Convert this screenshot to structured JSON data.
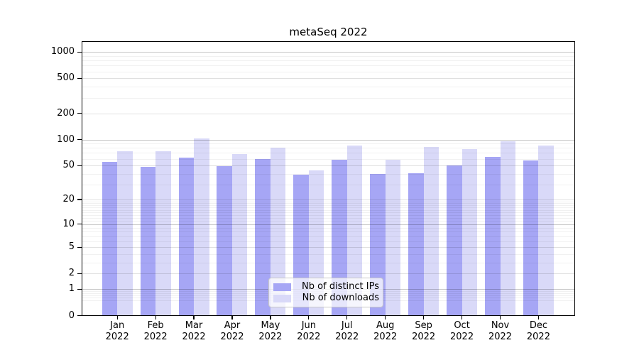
{
  "chart_data": {
    "type": "bar",
    "title": "metaSeq 2022",
    "categories": [
      "Jan",
      "Feb",
      "Mar",
      "Apr",
      "May",
      "Jun",
      "Jul",
      "Aug",
      "Sep",
      "Oct",
      "Nov",
      "Dec"
    ],
    "x_year_label": "2022",
    "series": [
      {
        "name": "Nb of distinct IPs",
        "color": "#a6a6f5",
        "values": [
          55,
          48,
          62,
          49,
          60,
          39,
          59,
          40,
          41,
          50,
          63,
          57
        ]
      },
      {
        "name": "Nb of downloads",
        "color": "#d9d9f8",
        "values": [
          74,
          73,
          102,
          68,
          80,
          44,
          85,
          58,
          82,
          78,
          95,
          86
        ]
      }
    ],
    "yscale": "symlog-log1p",
    "y_ticks": [
      1000,
      500,
      200,
      100,
      50,
      20,
      10,
      5,
      2,
      1,
      0
    ],
    "ylim": [
      0,
      1330
    ],
    "grid": "horizontal",
    "gridlines": {
      "decade_values": [
        1,
        10,
        100,
        1000
      ],
      "mid_values": [
        2,
        5,
        20,
        50,
        200,
        500
      ],
      "minor_values": [
        0.5,
        0.6,
        0.7,
        0.8,
        0.9,
        3,
        4,
        6,
        7,
        8,
        9,
        11,
        12,
        13,
        14,
        15,
        16,
        17,
        18,
        19,
        30,
        40,
        60,
        70,
        80,
        90,
        300,
        400,
        600,
        700,
        800,
        900
      ],
      "decade_color": "rgba(0,0,0,0.22)",
      "mid_color": "rgba(0,0,0,0.12)",
      "minor_color": "rgba(0,0,0,0.055)"
    },
    "legend_position": "inside lower center",
    "frame_color": "#000000",
    "background_color": "#ffffff"
  }
}
